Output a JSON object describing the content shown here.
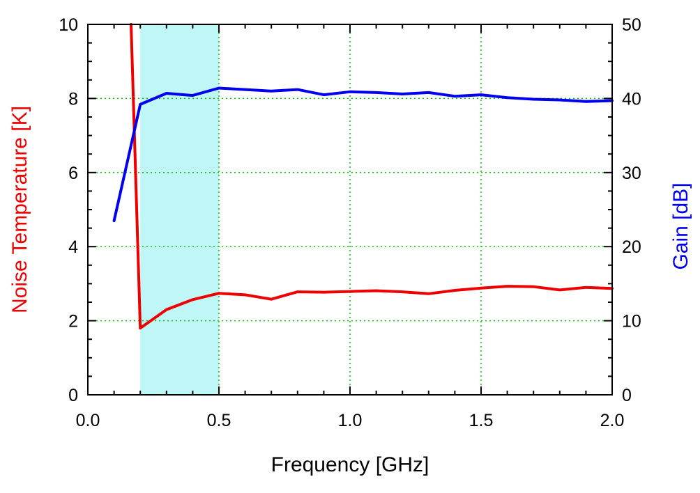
{
  "chart_data": {
    "type": "line",
    "title": "",
    "xlabel": "Frequency [GHz]",
    "ylabel_left": "Noise Temperature [K]",
    "ylabel_right": "Gain [dB]",
    "xlim": [
      0.0,
      2.0
    ],
    "ylim_left": [
      0,
      10
    ],
    "ylim_right": [
      0,
      50
    ],
    "x_ticks": [
      "0.0",
      "0.5",
      "1.0",
      "1.5",
      "2.0"
    ],
    "y_left_ticks": [
      "0",
      "2",
      "4",
      "6",
      "8",
      "10"
    ],
    "y_right_ticks": [
      "0",
      "10",
      "20",
      "30",
      "40",
      "50"
    ],
    "grid": true,
    "grid_style": "dotted",
    "highlight_band": {
      "x_range": [
        0.2,
        0.5
      ],
      "color": "#bff7f7"
    },
    "series": [
      {
        "axis": "left",
        "color": "#ee0000",
        "x": [
          0.165,
          0.2,
          0.3,
          0.4,
          0.5,
          0.6,
          0.7,
          0.8,
          0.9,
          1.0,
          1.1,
          1.2,
          1.3,
          1.4,
          1.5,
          1.6,
          1.7,
          1.8,
          1.9,
          2.0
        ],
        "y": [
          10.0,
          1.8,
          2.3,
          2.57,
          2.74,
          2.7,
          2.58,
          2.78,
          2.77,
          2.79,
          2.81,
          2.78,
          2.73,
          2.82,
          2.88,
          2.93,
          2.92,
          2.83,
          2.9,
          2.87
        ]
      },
      {
        "axis": "right",
        "color": "#0000ee",
        "x": [
          0.1,
          0.2,
          0.3,
          0.4,
          0.5,
          0.6,
          0.7,
          0.8,
          0.9,
          1.0,
          1.1,
          1.2,
          1.3,
          1.4,
          1.5,
          1.6,
          1.7,
          1.8,
          1.9,
          2.0
        ],
        "y": [
          23.5,
          39.2,
          40.7,
          40.4,
          41.4,
          41.2,
          41.0,
          41.2,
          40.5,
          40.9,
          40.8,
          40.6,
          40.8,
          40.3,
          40.5,
          40.1,
          39.9,
          39.8,
          39.6,
          39.7
        ]
      }
    ],
    "colors": {
      "left_axis_title": "#ee0000",
      "right_axis_title": "#0000ee",
      "grid": "#00cc00"
    }
  }
}
